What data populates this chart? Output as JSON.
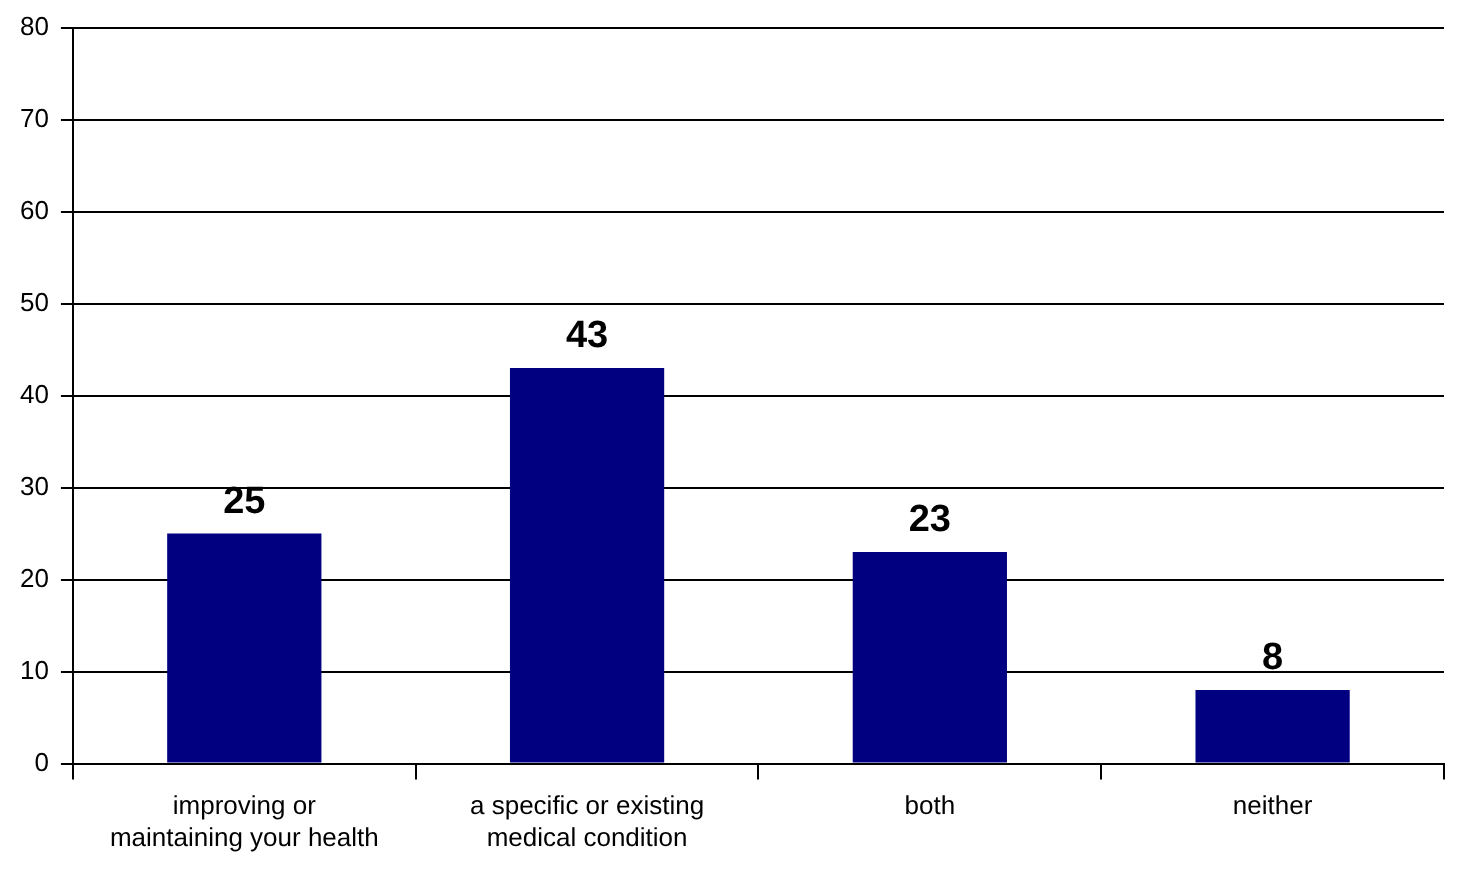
{
  "chart_data": {
    "type": "bar",
    "categories": [
      "improving or maintaining your health",
      "a specific or existing medical condition",
      "both",
      "neither"
    ],
    "values": [
      25,
      43,
      23,
      8
    ],
    "color": "#000080",
    "ylim": [
      0,
      80
    ],
    "yticks": [
      0,
      10,
      20,
      30,
      40,
      50,
      60,
      70,
      80
    ],
    "grid": "y",
    "data_labels": true
  }
}
